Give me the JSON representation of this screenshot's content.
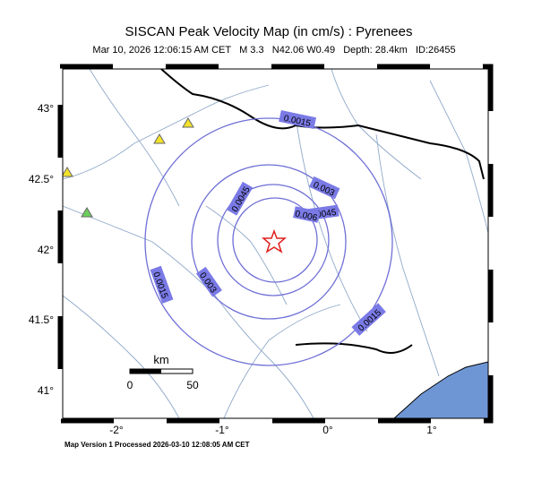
{
  "header": {
    "title": "SISCAN Peak Velocity Map (in cm/s) : Pyrenees",
    "subtitle": "Mar 10, 2026 12:06:15 AM CET   M 3.3   N42.06 W0.49   Depth: 28.4km   ID:26455"
  },
  "map": {
    "x_tick_labels": [
      "-2°",
      "-1°",
      "0°",
      "1°"
    ],
    "y_tick_labels": [
      "43°",
      "42.5°",
      "42°",
      "41.5°",
      "41°"
    ],
    "contour_labels": [
      "0.0015",
      "0.003",
      "0.0045",
      "0.006",
      "0.0045",
      "0.003",
      "0.0015",
      "0.0015"
    ],
    "scale_bar": {
      "unit": "km",
      "labels": [
        "0",
        "50"
      ]
    }
  },
  "footer": "Map Version 1 Processed 2026-03-10 12:08:05 AM CET"
}
